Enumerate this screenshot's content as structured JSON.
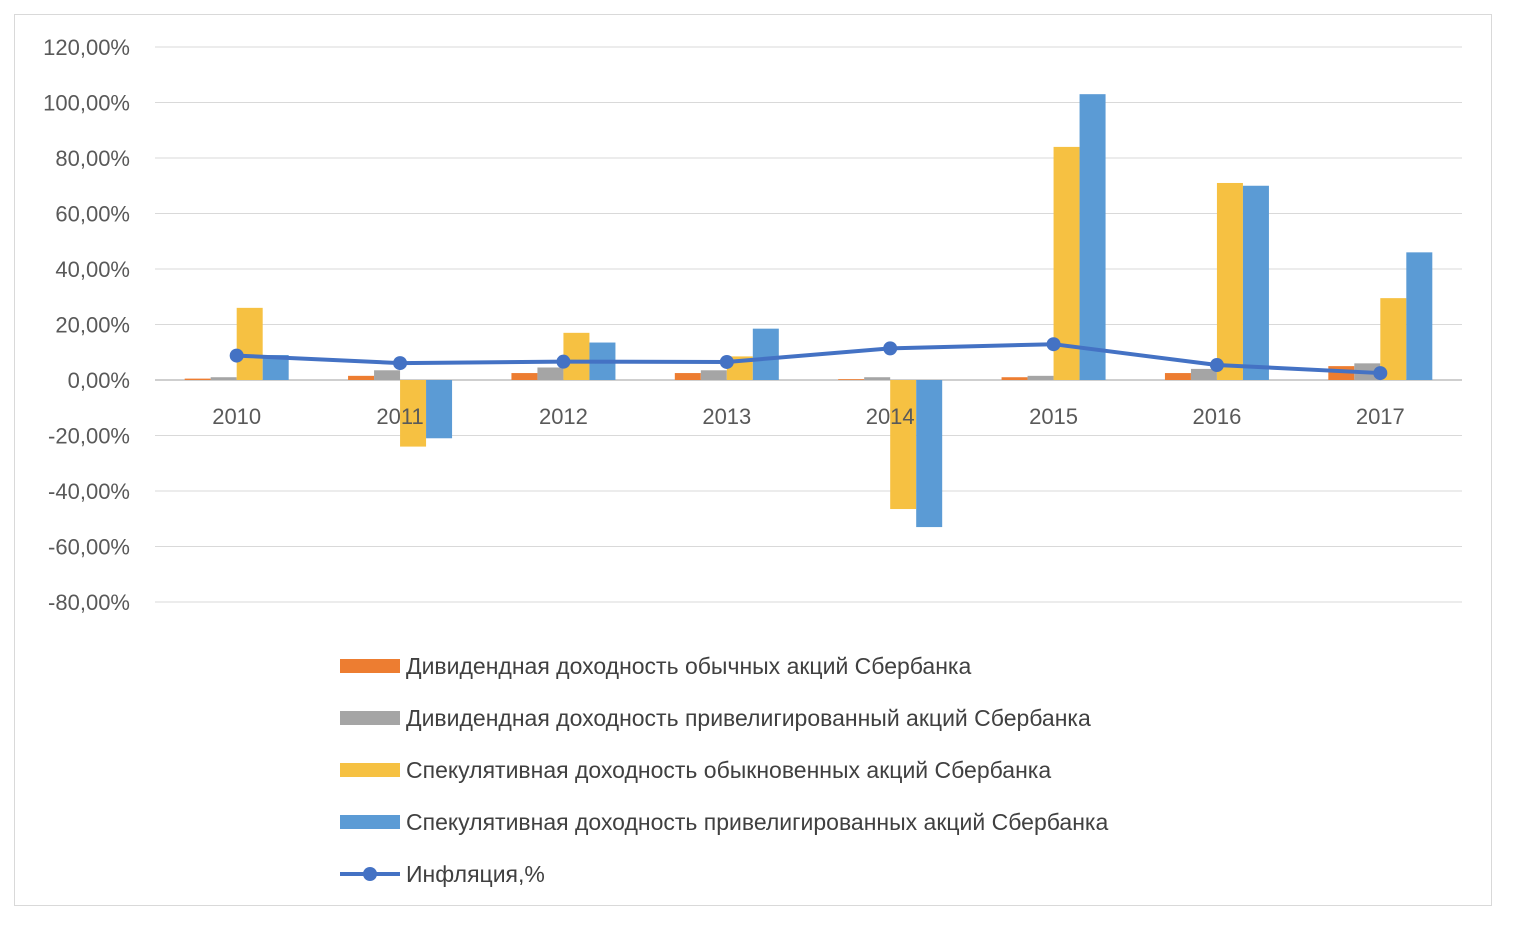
{
  "chart_data": {
    "type": "bar",
    "title": "",
    "xlabel": "",
    "ylabel": "",
    "ylim": [
      -80,
      120
    ],
    "y_ticks": [
      "120,00%",
      "100,00%",
      "80,00%",
      "60,00%",
      "40,00%",
      "20,00%",
      "0,00%",
      "-20,00%",
      "-40,00%",
      "-60,00%",
      "-80,00%"
    ],
    "y_tick_values": [
      120,
      100,
      80,
      60,
      40,
      20,
      0,
      -20,
      -40,
      -60,
      -80
    ],
    "categories": [
      "2010",
      "2011",
      "2012",
      "2013",
      "2014",
      "2015",
      "2016",
      "2017"
    ],
    "series": [
      {
        "name": "Дивидендная доходность обычных акций Сбербанка",
        "kind": "bar",
        "color": "#ed7d31",
        "values": [
          0.5,
          1.5,
          2.5,
          2.5,
          0.3,
          1.0,
          2.5,
          5.0
        ]
      },
      {
        "name": "Дивидендная доходность привелигированный акций Сбербанка",
        "kind": "bar",
        "color": "#a5a5a5",
        "values": [
          1.0,
          3.5,
          4.5,
          3.5,
          1.0,
          1.5,
          4.0,
          6.0
        ]
      },
      {
        "name": "Спекулятивная доходность обыкновенных акций Сбербанка",
        "kind": "bar",
        "color": "#f6c142",
        "values": [
          26.0,
          -24.0,
          17.0,
          8.5,
          -46.5,
          84.0,
          71.0,
          29.5
        ]
      },
      {
        "name": "Спекулятивная доходность привелигированных акций Сбербанка",
        "kind": "bar",
        "color": "#5b9bd5",
        "values": [
          9.0,
          -21.0,
          13.5,
          18.5,
          -53.0,
          103.0,
          70.0,
          46.0
        ]
      },
      {
        "name": "Инфляция,%",
        "kind": "line",
        "color": "#4472c4",
        "values": [
          8.8,
          6.1,
          6.6,
          6.5,
          11.4,
          12.9,
          5.4,
          2.5
        ]
      }
    ],
    "legend_position": "bottom"
  }
}
